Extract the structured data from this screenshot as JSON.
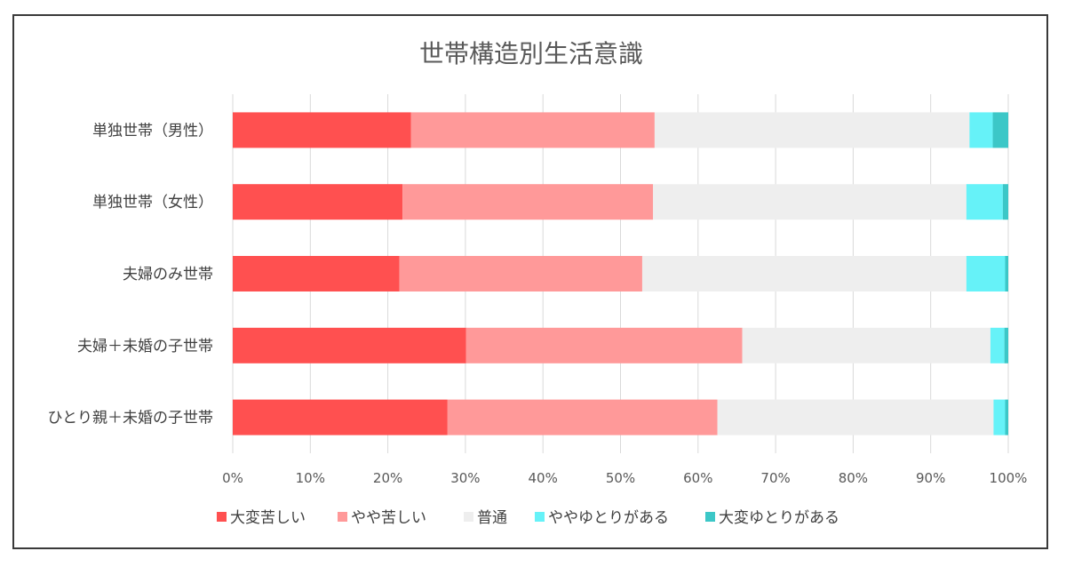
{
  "chart_data": {
    "type": "bar",
    "orientation": "horizontal",
    "stacked": "percent",
    "title": "世帯構造別生活意識",
    "categories": [
      "単独世帯（男性）",
      "単独世帯（女性）",
      "夫婦のみ世帯",
      "夫婦＋未婚の子世帯",
      "ひとり親＋未婚の子世帯"
    ],
    "series": [
      {
        "name": "大変苦しい",
        "color": "#ff5050",
        "values": [
          23.0,
          21.9,
          21.5,
          30.1,
          27.7
        ]
      },
      {
        "name": "やや苦しい",
        "color": "#ff9999",
        "values": [
          31.4,
          32.3,
          31.3,
          35.6,
          34.8
        ]
      },
      {
        "name": "普通",
        "color": "#eeeeee",
        "values": [
          40.6,
          40.4,
          41.8,
          32.0,
          35.6
        ]
      },
      {
        "name": "ややゆとりがある",
        "color": "#66f2f8",
        "values": [
          3.0,
          4.7,
          5.0,
          1.8,
          1.5
        ]
      },
      {
        "name": "大変ゆとりがある",
        "color": "#3cc7c7",
        "values": [
          2.0,
          0.7,
          0.4,
          0.5,
          0.4
        ]
      }
    ],
    "xticks": [
      "0%",
      "10%",
      "20%",
      "30%",
      "40%",
      "50%",
      "60%",
      "70%",
      "80%",
      "90%",
      "100%"
    ],
    "xlim": [
      0,
      100
    ],
    "grid": true,
    "legend": "bottom"
  }
}
